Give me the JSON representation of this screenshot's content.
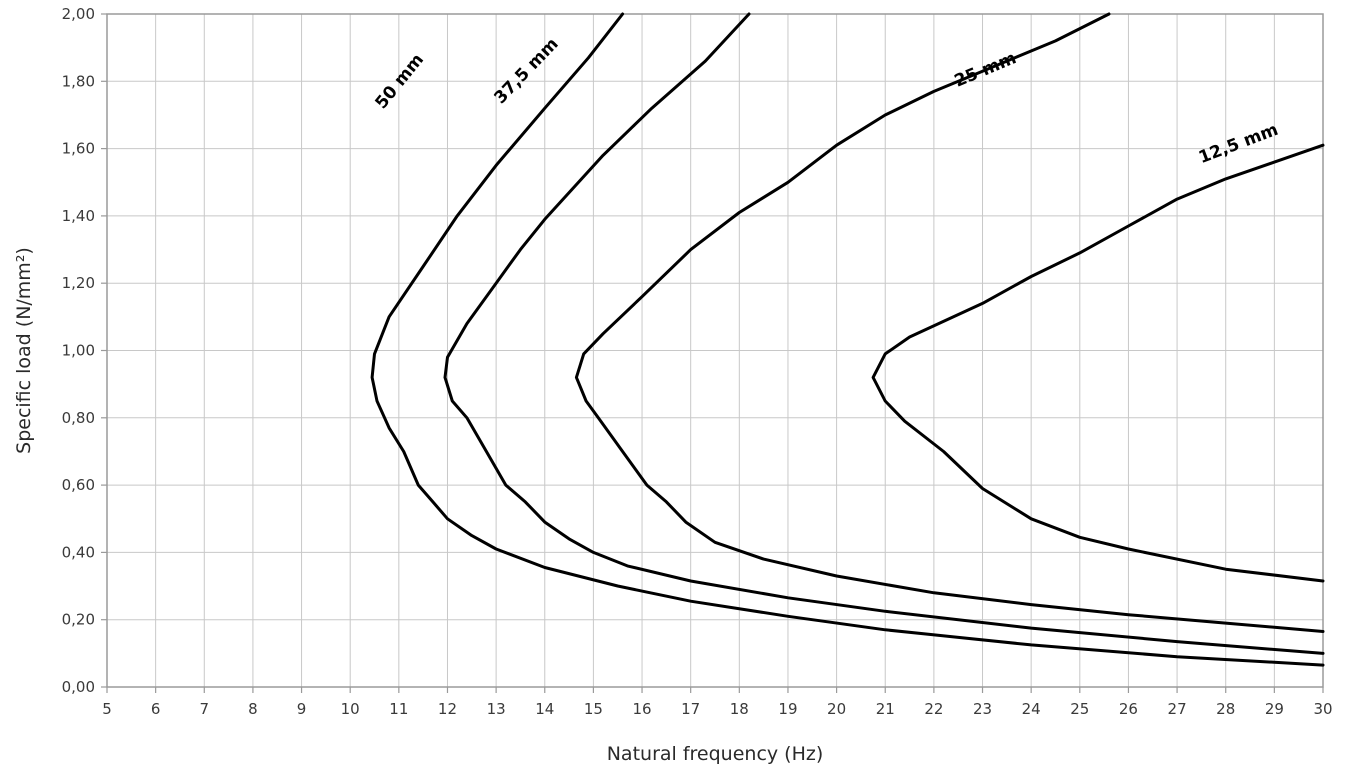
{
  "chart_data": {
    "type": "line",
    "title": "",
    "xlabel": "Natural frequency (Hz)",
    "ylabel": "Specific load (N/mm²)",
    "xlim": [
      5,
      30
    ],
    "ylim": [
      0,
      2
    ],
    "grid": true,
    "x_ticks": [
      "5",
      "6",
      "7",
      "8",
      "9",
      "10",
      "11",
      "12",
      "13",
      "14",
      "15",
      "16",
      "17",
      "18",
      "19",
      "20",
      "21",
      "22",
      "23",
      "24",
      "25",
      "26",
      "27",
      "28",
      "29",
      "30"
    ],
    "y_ticks": [
      "0,00",
      "0,20",
      "0,40",
      "0,60",
      "0,80",
      "1,00",
      "1,20",
      "1,40",
      "1,60",
      "1,80",
      "2,00"
    ],
    "series": [
      {
        "name": "50 mm",
        "points": [
          [
            30,
            0.065
          ],
          [
            27,
            0.09
          ],
          [
            24,
            0.125
          ],
          [
            21,
            0.17
          ],
          [
            19,
            0.21
          ],
          [
            17,
            0.255
          ],
          [
            15.5,
            0.3
          ],
          [
            14,
            0.355
          ],
          [
            13,
            0.41
          ],
          [
            12.5,
            0.45
          ],
          [
            12,
            0.5
          ],
          [
            11.7,
            0.55
          ],
          [
            11.4,
            0.6
          ],
          [
            11.1,
            0.7
          ],
          [
            10.8,
            0.77
          ],
          [
            10.55,
            0.85
          ],
          [
            10.45,
            0.92
          ],
          [
            10.5,
            0.99
          ],
          [
            10.8,
            1.1
          ],
          [
            11.5,
            1.25
          ],
          [
            12.2,
            1.4
          ],
          [
            13,
            1.55
          ],
          [
            14,
            1.72
          ],
          [
            14.9,
            1.87
          ],
          [
            15.6,
            2.0
          ]
        ],
        "label_at": [
          11.1,
          1.79
        ]
      },
      {
        "name": "37,5 mm",
        "points": [
          [
            30,
            0.1
          ],
          [
            27,
            0.135
          ],
          [
            24,
            0.175
          ],
          [
            21,
            0.225
          ],
          [
            19,
            0.265
          ],
          [
            17,
            0.315
          ],
          [
            15.7,
            0.36
          ],
          [
            15,
            0.4
          ],
          [
            14.5,
            0.44
          ],
          [
            14,
            0.49
          ],
          [
            13.6,
            0.55
          ],
          [
            13.2,
            0.6
          ],
          [
            12.8,
            0.7
          ],
          [
            12.4,
            0.8
          ],
          [
            12.1,
            0.85
          ],
          [
            11.95,
            0.92
          ],
          [
            12,
            0.98
          ],
          [
            12.4,
            1.08
          ],
          [
            13,
            1.2
          ],
          [
            13.5,
            1.3
          ],
          [
            14,
            1.39
          ],
          [
            15.2,
            1.58
          ],
          [
            16.2,
            1.72
          ],
          [
            17.3,
            1.86
          ],
          [
            18.2,
            2.0
          ]
        ],
        "label_at": [
          13.7,
          1.82
        ]
      },
      {
        "name": "25 mm",
        "points": [
          [
            30,
            0.165
          ],
          [
            28,
            0.19
          ],
          [
            26,
            0.215
          ],
          [
            24,
            0.245
          ],
          [
            22,
            0.28
          ],
          [
            20,
            0.33
          ],
          [
            18.5,
            0.38
          ],
          [
            17.5,
            0.43
          ],
          [
            16.9,
            0.49
          ],
          [
            16.5,
            0.55
          ],
          [
            16.1,
            0.6
          ],
          [
            15.6,
            0.7
          ],
          [
            15.1,
            0.8
          ],
          [
            14.85,
            0.85
          ],
          [
            14.65,
            0.92
          ],
          [
            14.8,
            0.99
          ],
          [
            15.2,
            1.05
          ],
          [
            16,
            1.16
          ],
          [
            17,
            1.3
          ],
          [
            18,
            1.41
          ],
          [
            19,
            1.5
          ],
          [
            20,
            1.61
          ],
          [
            21,
            1.7
          ],
          [
            22,
            1.77
          ],
          [
            23,
            1.83
          ],
          [
            24.5,
            1.92
          ],
          [
            25.6,
            2.0
          ]
        ],
        "label_at": [
          23.1,
          1.82
        ]
      },
      {
        "name": "12,5 mm",
        "points": [
          [
            30,
            0.315
          ],
          [
            28,
            0.35
          ],
          [
            26,
            0.41
          ],
          [
            25,
            0.445
          ],
          [
            24,
            0.5
          ],
          [
            23,
            0.59
          ],
          [
            22.2,
            0.7
          ],
          [
            21.4,
            0.79
          ],
          [
            21,
            0.85
          ],
          [
            20.75,
            0.92
          ],
          [
            21,
            0.99
          ],
          [
            21.5,
            1.04
          ],
          [
            23,
            1.14
          ],
          [
            24,
            1.22
          ],
          [
            25,
            1.29
          ],
          [
            26,
            1.37
          ],
          [
            27,
            1.45
          ],
          [
            28,
            1.51
          ],
          [
            29,
            1.56
          ],
          [
            30,
            1.61
          ]
        ],
        "label_at": [
          28.3,
          1.6
        ]
      }
    ]
  }
}
